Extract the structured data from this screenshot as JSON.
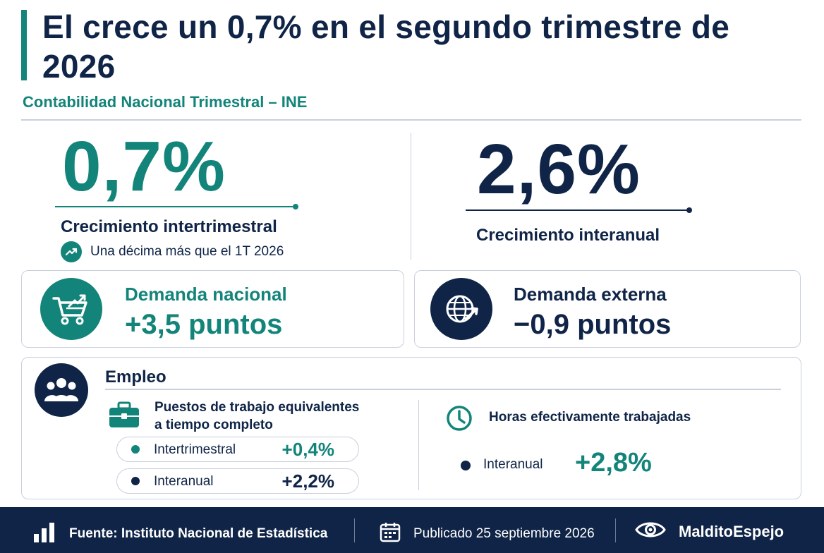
{
  "header": {
    "title": "El crece un 0,7% en el segundo trimestre de 2026",
    "subtitle": "Contabilidad Nacional Trimestral – INE"
  },
  "stats": {
    "intertrimestral": {
      "value": "0,7%",
      "label": "Crecimiento intertrimestral",
      "note": "Una décima más que el 1T 2026",
      "note_icon": "trend-up-icon"
    },
    "interanual": {
      "value": "2,6%",
      "label": "Crecimiento interanual"
    }
  },
  "demanda": {
    "nacional": {
      "title": "Demanda nacional",
      "value": "+3,5 puntos",
      "icon": "shopping-cart-icon"
    },
    "externa": {
      "title": "Demanda externa",
      "value": "−0,9 puntos",
      "icon": "globe-icon"
    }
  },
  "empleo": {
    "title": "Empleo",
    "icon": "people-icon",
    "puestos": {
      "label_line1": "Puestos de trabajo equivalentes",
      "label_line2": "a tiempo completo",
      "icon": "briefcase-icon",
      "rows": [
        {
          "label": "Intertrimestral",
          "value": "+0,4%"
        },
        {
          "label": "Interanual",
          "value": "+2,2%"
        }
      ]
    },
    "horas": {
      "label": "Horas efectivamente trabajadas",
      "icon": "clock-icon",
      "row": {
        "label": "Interanual",
        "value": "+2,8%"
      }
    }
  },
  "footer": {
    "source": "Fuente: Instituto Nacional de Estadística",
    "published": "Publicado 25 septiembre 2026",
    "brand": "MalditoEspejo"
  },
  "colors": {
    "navy": "#0f2447",
    "teal": "#138479",
    "border": "#c9d0dc"
  }
}
